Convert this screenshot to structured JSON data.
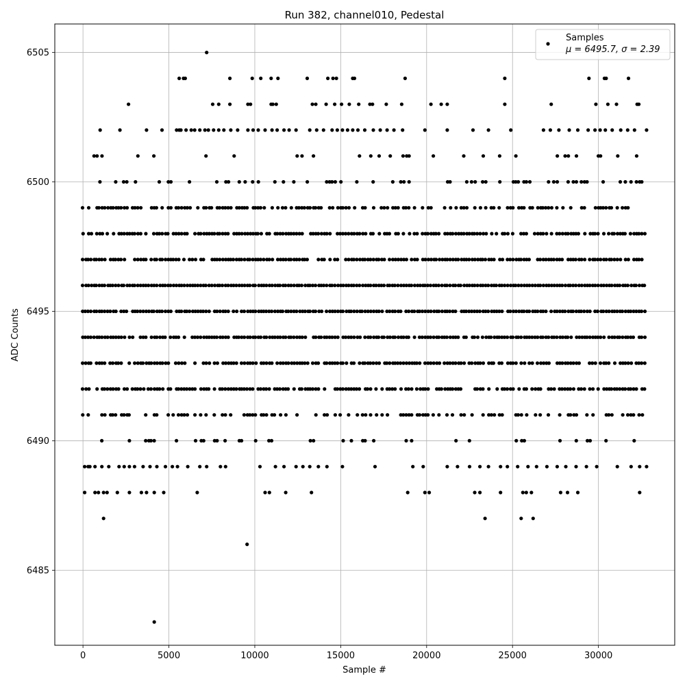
{
  "chart_data": {
    "type": "scatter",
    "title": "Run 382, channel010, Pedestal",
    "xlabel": "Sample #",
    "ylabel": "ADC Counts",
    "xlim": [
      -1640,
      34440
    ],
    "ylim": [
      6482.1,
      6506.1
    ],
    "x_ticks": [
      0,
      5000,
      10000,
      15000,
      20000,
      25000,
      30000
    ],
    "y_ticks": [
      6485,
      6490,
      6495,
      6500,
      6505
    ],
    "grid": true,
    "legend": {
      "placement": "top-right",
      "series_name": "Samples",
      "stats_text": "μ = 6495.7, σ = 2.39"
    },
    "marker_color": "#000000",
    "x_max": 32767,
    "bands": [
      {
        "y": 6500,
        "density": 0.3
      },
      {
        "y": 6499,
        "density": 0.6
      },
      {
        "y": 6498,
        "density": 0.8
      },
      {
        "y": 6497,
        "density": 0.9
      },
      {
        "y": 6496,
        "density": 1.0
      },
      {
        "y": 6495,
        "density": 0.95
      },
      {
        "y": 6494,
        "density": 0.9
      },
      {
        "y": 6493,
        "density": 0.8
      },
      {
        "y": 6492,
        "density": 0.7
      },
      {
        "y": 6491,
        "density": 0.45
      },
      {
        "y": 6490,
        "density": 0.2
      },
      {
        "y": 6501,
        "density": 0.18
      }
    ],
    "sparse_points": {
      "6502": [
        1000,
        2150,
        3700,
        4600,
        5450,
        5600,
        5700,
        6000,
        6300,
        6500,
        6800,
        7100,
        7300,
        7600,
        7900,
        8200,
        8600,
        9000,
        9600,
        9900,
        10200,
        10600,
        11000,
        11300,
        11700,
        12000,
        12400,
        13200,
        13600,
        14000,
        14500,
        14800,
        15100,
        15400,
        15700,
        16000,
        16400,
        16900,
        17300,
        17700,
        18100,
        18600,
        19900,
        21200,
        22700,
        23600,
        24900,
        26800,
        27200,
        27700,
        28300,
        28800,
        29400,
        29800,
        30100,
        30400,
        30800,
        31300,
        31700,
        32100,
        32800
      ],
      "6503": [
        2650,
        7550,
        7900,
        8550,
        9600,
        9750,
        10950,
        11050,
        11250,
        13350,
        13550,
        14150,
        14650,
        15050,
        15500,
        16050,
        16700,
        16850,
        17650,
        18550,
        20250,
        20850,
        21200,
        24550,
        27250,
        29850,
        30550,
        31050,
        32250,
        32350
      ],
      "6504": [
        5600,
        5850,
        5950,
        8550,
        9850,
        10350,
        10950,
        11350,
        13050,
        14250,
        14550,
        14750,
        15700,
        15800,
        18750,
        24550,
        29450,
        30350,
        30450,
        31750
      ],
      "6505": [
        7200
      ],
      "6489": [
        100,
        300,
        400,
        700,
        1100,
        1500,
        2100,
        2400,
        2700,
        3000,
        3500,
        3900,
        4300,
        4800,
        5200,
        5500,
        6100,
        6800,
        7200,
        8000,
        8300,
        10300,
        11200,
        11700,
        12400,
        12800,
        13200,
        13700,
        14200,
        15100,
        17000,
        19200,
        19800,
        21200,
        21800,
        22500,
        23100,
        23600,
        24300,
        24700,
        25300,
        25900,
        26400,
        27000,
        27600,
        28100,
        28700,
        29300,
        29900,
        31100,
        31900,
        32400,
        32800
      ],
      "6488": [
        100,
        700,
        900,
        1200,
        1400,
        2000,
        2700,
        3400,
        3700,
        4150,
        4700,
        6650,
        10600,
        10850,
        11800,
        13300,
        18900,
        19900,
        20150,
        22800,
        23100,
        24300,
        25600,
        25800,
        26100,
        27800,
        28200,
        28800,
        32400
      ],
      "6487": [
        1200,
        23400,
        25500,
        26200
      ],
      "6486": [
        9550
      ],
      "6483": [
        4150
      ]
    }
  }
}
